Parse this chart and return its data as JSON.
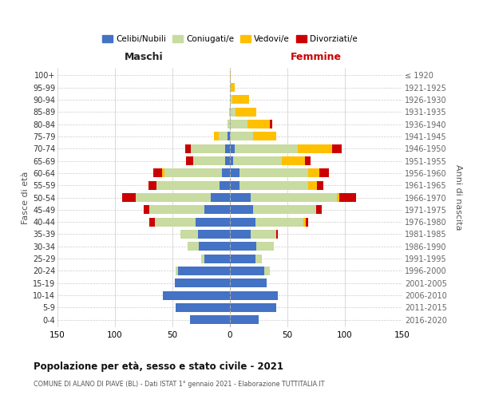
{
  "age_groups": [
    "0-4",
    "5-9",
    "10-14",
    "15-19",
    "20-24",
    "25-29",
    "30-34",
    "35-39",
    "40-44",
    "45-49",
    "50-54",
    "55-59",
    "60-64",
    "65-69",
    "70-74",
    "75-79",
    "80-84",
    "85-89",
    "90-94",
    "95-99",
    "100+"
  ],
  "birth_years": [
    "2016-2020",
    "2011-2015",
    "2006-2010",
    "2001-2005",
    "1996-2000",
    "1991-1995",
    "1986-1990",
    "1981-1985",
    "1976-1980",
    "1971-1975",
    "1966-1970",
    "1961-1965",
    "1956-1960",
    "1951-1955",
    "1946-1950",
    "1941-1945",
    "1936-1940",
    "1931-1935",
    "1926-1930",
    "1921-1925",
    "≤ 1920"
  ],
  "maschi": {
    "celibi": [
      35,
      47,
      58,
      48,
      45,
      22,
      27,
      28,
      30,
      22,
      17,
      9,
      7,
      4,
      4,
      2,
      0,
      0,
      0,
      0,
      0
    ],
    "coniugati": [
      0,
      0,
      0,
      0,
      2,
      3,
      10,
      15,
      35,
      48,
      65,
      55,
      50,
      28,
      30,
      8,
      2,
      1,
      0,
      0,
      0
    ],
    "vedovi": [
      0,
      0,
      0,
      0,
      0,
      0,
      0,
      0,
      0,
      0,
      0,
      0,
      2,
      0,
      0,
      4,
      0,
      0,
      0,
      0,
      0
    ],
    "divorziati": [
      0,
      0,
      0,
      0,
      0,
      0,
      0,
      0,
      5,
      5,
      12,
      7,
      8,
      6,
      5,
      0,
      0,
      0,
      0,
      0,
      0
    ]
  },
  "femmine": {
    "celibi": [
      25,
      40,
      42,
      32,
      30,
      22,
      23,
      18,
      22,
      20,
      18,
      8,
      8,
      3,
      4,
      0,
      0,
      0,
      0,
      0,
      0
    ],
    "coniugati": [
      0,
      0,
      0,
      0,
      5,
      6,
      15,
      22,
      42,
      55,
      75,
      60,
      60,
      42,
      55,
      20,
      15,
      5,
      2,
      1,
      0
    ],
    "vedovi": [
      0,
      0,
      0,
      0,
      0,
      0,
      0,
      0,
      2,
      0,
      2,
      8,
      10,
      20,
      30,
      20,
      20,
      18,
      15,
      3,
      1
    ],
    "divorziati": [
      0,
      0,
      0,
      0,
      0,
      0,
      0,
      2,
      2,
      5,
      15,
      5,
      8,
      5,
      8,
      0,
      2,
      0,
      0,
      0,
      0
    ]
  },
  "colors": {
    "celibi": "#4472c4",
    "coniugati": "#c8dba0",
    "vedovi": "#ffc000",
    "divorziati": "#cc0000"
  },
  "title": "Popolazione per età, sesso e stato civile - 2021",
  "subtitle": "COMUNE DI ALANO DI PIAVE (BL) - Dati ISTAT 1° gennaio 2021 - Elaborazione TUTTITALIA.IT",
  "xlabel_left": "Maschi",
  "xlabel_right": "Femmine",
  "ylabel_left": "Fasce di età",
  "ylabel_right": "Anni di nascita",
  "xlim": 150,
  "legend_labels": [
    "Celibi/Nubili",
    "Coniugati/e",
    "Vedovi/e",
    "Divorziati/e"
  ],
  "bg_color": "#ffffff",
  "grid_color": "#cccccc"
}
